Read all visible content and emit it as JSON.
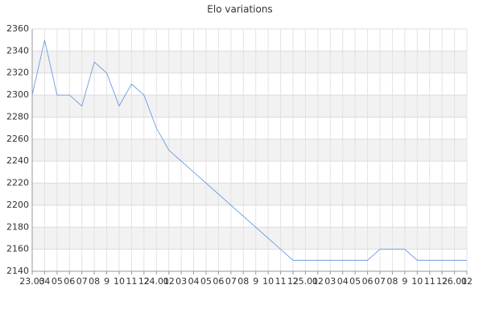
{
  "chart_data": {
    "type": "line",
    "title": "Elo variations",
    "categories": [
      "23.03",
      "04",
      "05",
      "06",
      "07",
      "08",
      "9",
      "10",
      "11",
      "12",
      "24.01",
      "02",
      "03",
      "04",
      "05",
      "06",
      "07",
      "08",
      "9",
      "10",
      "11",
      "12",
      "25.01",
      "02",
      "03",
      "04",
      "05",
      "06",
      "07",
      "08",
      "9",
      "10",
      "11",
      "12",
      "26.01",
      "02"
    ],
    "series": [
      {
        "name": "Elo",
        "color": "#5b8fe0",
        "values": [
          2300,
          2350,
          2300,
          2300,
          2290,
          2330,
          2320,
          2290,
          2310,
          2300,
          2270,
          2250,
          2240,
          2230,
          2220,
          2210,
          2200,
          2190,
          2180,
          2170,
          2160,
          2150,
          2150,
          2150,
          2150,
          2150,
          2150,
          2150,
          2160,
          2160,
          2160,
          2150,
          2150,
          2150,
          2150,
          2150
        ]
      }
    ],
    "ylim": [
      2140,
      2360
    ],
    "yticks": [
      2140,
      2160,
      2180,
      2200,
      2220,
      2240,
      2260,
      2280,
      2300,
      2320,
      2340,
      2360
    ],
    "grid": true
  }
}
